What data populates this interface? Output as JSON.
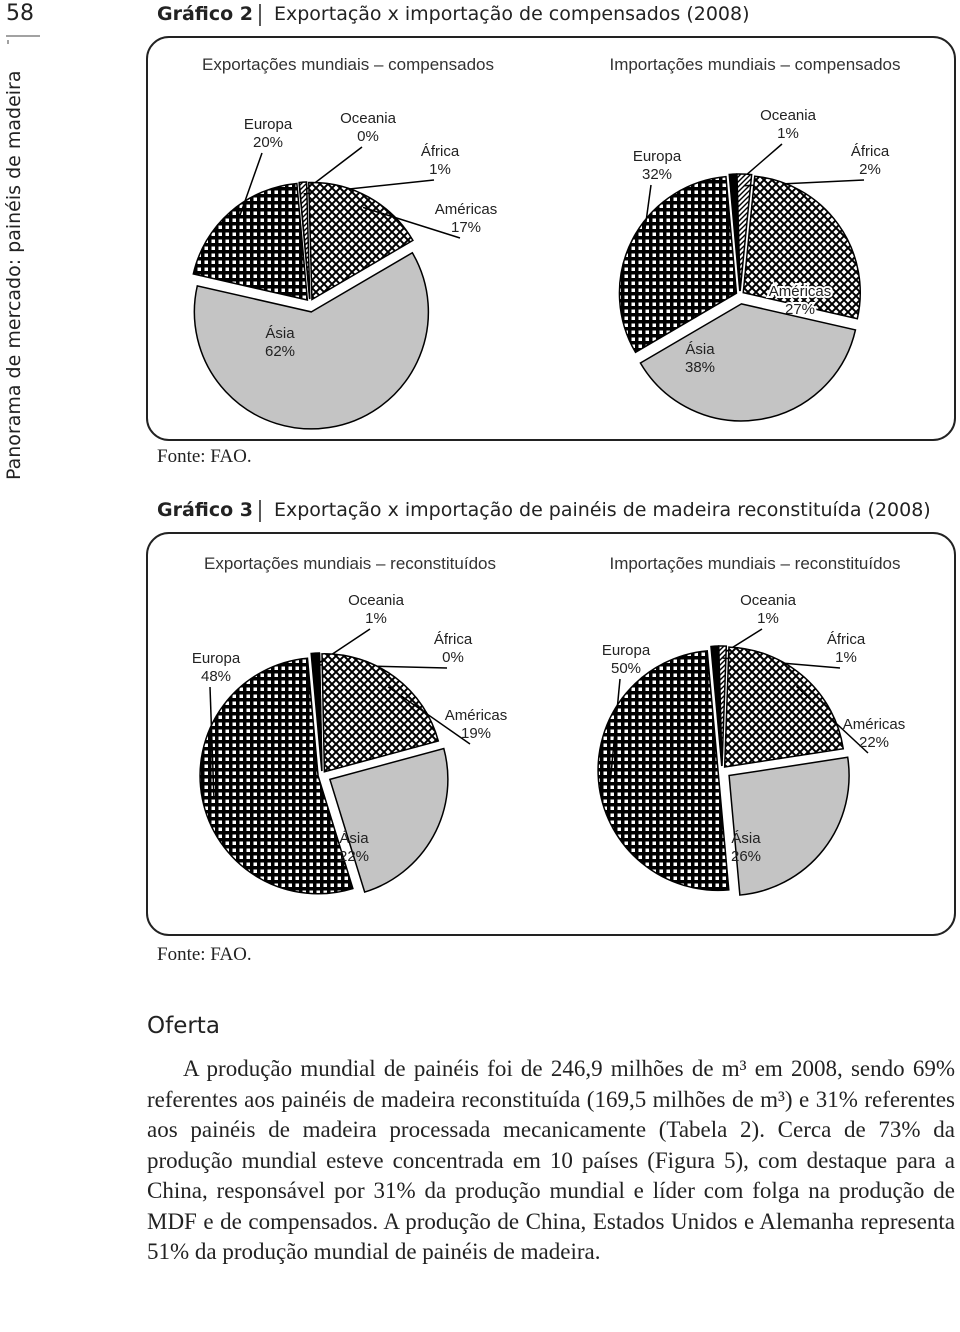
{
  "page_number": "58",
  "running_head": "Panorama de mercado: painéis de madeira",
  "figures": [
    {
      "label": "Gráfico 2",
      "title": "Exportação x importação de compensados (2008)",
      "source": "Fonte: FAO."
    },
    {
      "label": "Gráfico 3",
      "title": "Exportação x importação de painéis de madeira reconstituída (2008)",
      "source": "Fonte: FAO."
    }
  ],
  "chart_data": [
    {
      "type": "pie",
      "title": "Exportações mundiais – compensados",
      "categories": [
        "Europa",
        "Oceania",
        "África",
        "Américas",
        "Ásia"
      ],
      "values": [
        20,
        0,
        1,
        17,
        62
      ],
      "value_labels": [
        "20%",
        "0%",
        "1%",
        "17%",
        "62%"
      ],
      "patterns": [
        "dots",
        "black",
        "diagonal",
        "crosshatch",
        "gray"
      ]
    },
    {
      "type": "pie",
      "title": "Importações mundiais – compensados",
      "categories": [
        "Europa",
        "Oceania",
        "África",
        "Américas",
        "Ásia"
      ],
      "values": [
        32,
        1,
        2,
        27,
        38
      ],
      "value_labels": [
        "32%",
        "1%",
        "2%",
        "27%",
        "38%"
      ],
      "patterns": [
        "dots",
        "black",
        "diagonal",
        "crosshatch",
        "gray"
      ]
    },
    {
      "type": "pie",
      "title": "Exportações mundiais – reconstituídos",
      "categories": [
        "Europa",
        "Oceania",
        "África",
        "Américas",
        "Ásia"
      ],
      "values": [
        48,
        1,
        0,
        19,
        22
      ],
      "value_labels": [
        "48%",
        "1%",
        "0%",
        "19%",
        "22%"
      ],
      "patterns": [
        "dots",
        "black",
        "diagonal",
        "crosshatch",
        "gray"
      ]
    },
    {
      "type": "pie",
      "title": "Importações mundiais – reconstituídos",
      "categories": [
        "Europa",
        "Oceania",
        "África",
        "Américas",
        "Ásia"
      ],
      "values": [
        50,
        1,
        1,
        22,
        26
      ],
      "value_labels": [
        "50%",
        "1%",
        "1%",
        "22%",
        "26%"
      ],
      "patterns": [
        "dots",
        "black",
        "diagonal",
        "crosshatch",
        "gray"
      ]
    }
  ],
  "section_title": "Oferta",
  "paragraph": "A produção mundial de painéis foi de 246,9 milhões de m³ em 2008, sendo 69% referentes aos painéis de madeira reconstituída (169,5 milhões de m³) e 31% referentes aos painéis de madeira processada mecanicamente (Tabela 2). Cerca de 73% da produção mundial esteve concentrada em 10 países (Figura 5), com destaque para a China, responsável por 31% da produção mundial e líder com folga na produção de MDF e de compensados. A produção de China, Estados Unidos e Alemanha representa 51% da produção mundial de painéis de madeira."
}
